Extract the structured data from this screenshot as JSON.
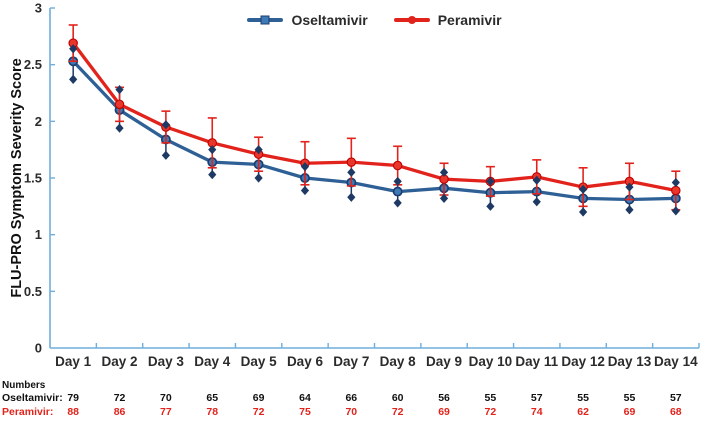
{
  "figure": {
    "background": "#ffffff"
  },
  "axes": {
    "color": "#6FAEDC",
    "tick_label_color": "#2b2b2b",
    "y_tick_labels": [
      "0",
      "0.5",
      "1",
      "1.5",
      "2",
      "2.5",
      "3"
    ],
    "y_tick_values": [
      0,
      0.5,
      1,
      1.5,
      2,
      2.5,
      3
    ]
  },
  "chart_data": {
    "type": "line",
    "title": "",
    "xlabel": "",
    "ylabel": "FLU-PRO Symptom Severity Score",
    "ylim": [
      0,
      3
    ],
    "grid": false,
    "legend_position": "top-center",
    "categories": [
      "Day 1",
      "Day 2",
      "Day 3",
      "Day 4",
      "Day 5",
      "Day 6",
      "Day 7",
      "Day 8",
      "Day 9",
      "Day 10",
      "Day 11",
      "Day 12",
      "Day 13",
      "Day 14"
    ],
    "series": [
      {
        "name": "Oseltamivir",
        "line_color": "#2E6096",
        "marker": "circle",
        "marker_fill": "#3E7AB6",
        "marker_stroke": "#1C3E6E",
        "error_style": "diamond-caps",
        "error_color": "#1E3A64",
        "values": [
          2.53,
          2.1,
          1.84,
          1.64,
          1.62,
          1.5,
          1.46,
          1.38,
          1.41,
          1.37,
          1.38,
          1.32,
          1.31,
          1.32
        ],
        "upper": [
          2.64,
          2.28,
          1.97,
          1.75,
          1.75,
          1.6,
          1.55,
          1.47,
          1.55,
          1.47,
          1.48,
          1.4,
          1.42,
          1.46
        ],
        "lower": [
          2.37,
          1.94,
          1.7,
          1.53,
          1.5,
          1.39,
          1.33,
          1.28,
          1.32,
          1.25,
          1.29,
          1.2,
          1.22,
          1.21
        ],
        "counts": [
          79,
          72,
          70,
          65,
          69,
          64,
          66,
          60,
          56,
          55,
          57,
          55,
          55,
          57
        ]
      },
      {
        "name": "Peramivir",
        "line_color": "#E2231C",
        "marker": "circle",
        "marker_fill": "#E8362A",
        "marker_stroke": "#C00000",
        "error_style": "t-caps",
        "error_color": "#E2231C",
        "values": [
          2.69,
          2.15,
          1.95,
          1.81,
          1.71,
          1.63,
          1.64,
          1.61,
          1.49,
          1.47,
          1.51,
          1.42,
          1.47,
          1.39
        ],
        "upper": [
          2.85,
          2.3,
          2.09,
          2.03,
          1.86,
          1.82,
          1.85,
          1.78,
          1.63,
          1.6,
          1.66,
          1.59,
          1.63,
          1.56
        ],
        "lower": [
          2.53,
          2.0,
          1.81,
          1.59,
          1.56,
          1.44,
          1.43,
          1.44,
          1.35,
          1.34,
          1.36,
          1.25,
          1.31,
          1.22
        ],
        "counts": [
          88,
          86,
          77,
          78,
          72,
          75,
          70,
          72,
          69,
          72,
          74,
          62,
          69,
          68
        ]
      }
    ]
  },
  "numbers_table": {
    "title": "Numbers",
    "rows": [
      {
        "label": "Oseltamivir:",
        "color": "#111111"
      },
      {
        "label": "Peramivir:",
        "color": "#E2231C"
      }
    ]
  }
}
